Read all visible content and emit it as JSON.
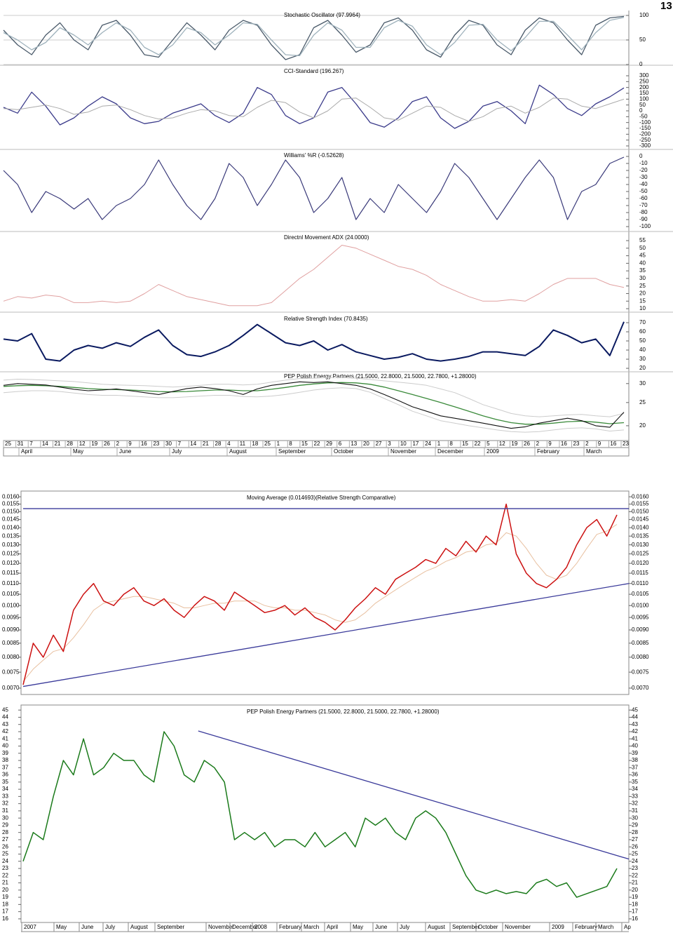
{
  "page_number": "13",
  "chart_data": [
    {
      "type": "line",
      "title": "Stochastic Oscillator (97.9964)",
      "ylim": [
        -1.5,
        110
      ],
      "yticks": [
        100,
        50,
        0
      ],
      "grid": true,
      "series": [
        {
          "color": "#4a5a6a",
          "line_width": 1.3,
          "values": [
            70,
            40,
            20,
            60,
            85,
            50,
            30,
            80,
            90,
            60,
            20,
            15,
            50,
            85,
            60,
            30,
            70,
            90,
            80,
            40,
            10,
            20,
            75,
            90,
            60,
            25,
            40,
            85,
            95,
            70,
            30,
            15,
            60,
            90,
            80,
            40,
            20,
            70,
            95,
            85,
            50,
            20,
            80,
            95,
            98
          ]
        },
        {
          "color": "#9fb2bc",
          "line_width": 1.3,
          "values": [
            65,
            50,
            30,
            45,
            75,
            60,
            40,
            65,
            85,
            70,
            35,
            20,
            40,
            75,
            65,
            40,
            60,
            85,
            82,
            50,
            20,
            18,
            60,
            85,
            70,
            35,
            35,
            75,
            90,
            78,
            40,
            20,
            45,
            80,
            82,
            50,
            28,
            55,
            88,
            88,
            60,
            30,
            65,
            90,
            96
          ]
        }
      ]
    },
    {
      "type": "line",
      "title": "CCI-Standard (196.267)",
      "ylim": [
        -330,
        378
      ],
      "yticks": [
        300,
        250,
        200,
        150,
        100,
        50,
        0,
        -50,
        -100,
        -150,
        -200,
        -250,
        -300
      ],
      "grid": false,
      "series": [
        {
          "color": "#3a3a8a",
          "line_width": 1.3,
          "values": [
            30,
            -20,
            160,
            40,
            -120,
            -60,
            40,
            120,
            60,
            -60,
            -110,
            -90,
            -20,
            20,
            60,
            -40,
            -100,
            -20,
            200,
            140,
            -40,
            -110,
            -60,
            160,
            200,
            60,
            -100,
            -140,
            -60,
            80,
            120,
            -60,
            -150,
            -90,
            40,
            80,
            0,
            -110,
            220,
            140,
            20,
            -40,
            60,
            120,
            196
          ]
        },
        {
          "color": "#aaaaaa",
          "line_width": 1,
          "values": [
            20,
            10,
            30,
            50,
            20,
            -30,
            -10,
            40,
            50,
            10,
            -40,
            -70,
            -60,
            -20,
            10,
            0,
            -40,
            -50,
            30,
            90,
            70,
            -10,
            -60,
            0,
            100,
            110,
            30,
            -60,
            -80,
            -20,
            40,
            30,
            -40,
            -90,
            -50,
            20,
            40,
            -20,
            30,
            110,
            100,
            40,
            20,
            60,
            100
          ]
        }
      ]
    },
    {
      "type": "line",
      "title": "Williams' %R (-0.52628)",
      "ylim": [
        -107,
        8
      ],
      "yticks": [
        0,
        -10,
        -20,
        -30,
        -40,
        -50,
        -60,
        -70,
        -80,
        -90,
        -100
      ],
      "grid": false,
      "series": [
        {
          "color": "#3a3a7a",
          "line_width": 1.2,
          "values": [
            -20,
            -40,
            -80,
            -50,
            -60,
            -75,
            -60,
            -90,
            -70,
            -60,
            -40,
            -5,
            -40,
            -70,
            -90,
            -60,
            -10,
            -30,
            -70,
            -40,
            -5,
            -30,
            -80,
            -60,
            -30,
            -90,
            -60,
            -80,
            -40,
            -60,
            -80,
            -50,
            -10,
            -30,
            -60,
            -90,
            -60,
            -30,
            -5,
            -30,
            -90,
            -50,
            -40,
            -10,
            -1
          ]
        }
      ]
    },
    {
      "type": "line",
      "title": "Directnl Movement ADX (24.0000)",
      "ylim": [
        7.7,
        60.1
      ],
      "yticks": [
        55,
        50,
        45,
        40,
        35,
        30,
        25,
        20,
        15,
        10
      ],
      "grid": false,
      "series": [
        {
          "color": "#e0a0a0",
          "line_width": 1,
          "values": [
            15,
            18,
            17,
            19,
            18,
            14,
            14,
            15,
            14,
            15,
            20,
            26,
            22,
            18,
            16,
            14,
            12,
            12,
            12,
            14,
            22,
            30,
            36,
            44,
            52,
            50,
            46,
            42,
            38,
            36,
            32,
            26,
            22,
            18,
            15,
            15,
            16,
            15,
            20,
            26,
            30,
            30,
            30,
            26,
            24
          ]
        }
      ]
    },
    {
      "type": "line",
      "title": "Relative Strength Index (70.8435)",
      "ylim": [
        16.2,
        79.2
      ],
      "yticks": [
        70,
        60,
        50,
        40,
        30,
        20
      ],
      "grid": false,
      "series": [
        {
          "color": "#0a1a60",
          "line_width": 2,
          "values": [
            52,
            50,
            58,
            30,
            28,
            40,
            45,
            42,
            48,
            44,
            54,
            62,
            45,
            35,
            33,
            38,
            45,
            56,
            68,
            58,
            48,
            45,
            50,
            40,
            46,
            38,
            34,
            30,
            32,
            36,
            30,
            28,
            30,
            33,
            38,
            38,
            36,
            34,
            44,
            62,
            56,
            48,
            52,
            34,
            71
          ]
        }
      ]
    },
    {
      "type": "line",
      "title": "PEP Polish Energy Partners (21.5000, 22.8000, 21.5000, 22.7800, +1.28000)",
      "log": true,
      "ylim": [
        17.7,
        33.6
      ],
      "yticks": [
        30,
        25,
        20
      ],
      "grid": false,
      "series": [
        {
          "color": "#cccccc",
          "line_width": 1,
          "values": [
            31,
            31.3,
            31.2,
            31,
            30.8,
            30.6,
            30.2,
            29.8,
            29.6,
            29.5,
            29.4,
            29.2,
            29,
            29.2,
            29.5,
            29.8,
            29.8,
            29.6,
            29.8,
            30.4,
            31,
            31.5,
            31.6,
            31.8,
            31.8,
            31.6,
            31.2,
            30.8,
            30.4,
            30,
            29.5,
            28.5,
            27.5,
            26,
            24.5,
            23.5,
            22.5,
            22,
            21.8,
            22,
            22.2,
            22.3,
            22,
            21.8,
            22.5
          ]
        },
        {
          "color": "#cccccc",
          "line_width": 1,
          "values": [
            27.5,
            27.8,
            28,
            28,
            27.8,
            27.4,
            27,
            26.8,
            26.8,
            26.6,
            26.4,
            26.2,
            26.2,
            26.4,
            26.6,
            26.8,
            26.8,
            26.5,
            26.4,
            26.6,
            27,
            27.6,
            28.2,
            28.6,
            28.8,
            28.6,
            27.6,
            26,
            24.5,
            23,
            22,
            21,
            20.5,
            20,
            19.6,
            19.2,
            18.9,
            18.8,
            18.9,
            19.2,
            19.5,
            19.6,
            19.4,
            19,
            19.2
          ]
        },
        {
          "color": "#3a8a3a",
          "line_width": 1.3,
          "values": [
            29.2,
            29.4,
            29.5,
            29.4,
            29.2,
            28.9,
            28.6,
            28.4,
            28.3,
            28.2,
            28,
            27.8,
            27.7,
            27.8,
            28,
            28.2,
            28.2,
            28,
            28,
            28.4,
            28.9,
            29.5,
            29.9,
            30.2,
            30.3,
            30.2,
            29.8,
            29,
            28,
            27,
            26,
            25,
            24,
            23,
            22,
            21.2,
            20.6,
            20.3,
            20.3,
            20.5,
            20.8,
            20.9,
            20.7,
            20.4,
            20.6
          ]
        },
        {
          "color": "#111111",
          "line_width": 1.1,
          "values": [
            29.5,
            30,
            29.8,
            29.6,
            29,
            28.4,
            28,
            28.2,
            28.5,
            28,
            27.5,
            27,
            27.8,
            28.6,
            29,
            28.6,
            28,
            27,
            28.5,
            29.5,
            30,
            30.5,
            30.3,
            30.5,
            30,
            29.5,
            28.5,
            27,
            25.5,
            24,
            23,
            22,
            21.5,
            21,
            20.5,
            20,
            19.5,
            19.8,
            20.5,
            21,
            21.5,
            21,
            20,
            19.7,
            22.78
          ]
        }
      ]
    },
    {
      "type": "line",
      "title": "Moving Average (0.014693)(Relative Strength Comparative)",
      "log": true,
      "ylim": [
        0.00681,
        0.0164
      ],
      "yticks": [
        {
          "value": 0.016,
          "label": "0.0160"
        },
        {
          "value": 0.0155,
          "label": "0.0155"
        },
        {
          "value": 0.015,
          "label": "0.0150"
        },
        {
          "value": 0.0145,
          "label": "0.0145"
        },
        {
          "value": 0.014,
          "label": "0.0140"
        },
        {
          "value": 0.0135,
          "label": "0.0135"
        },
        {
          "value": 0.013,
          "label": "0.0130"
        },
        {
          "value": 0.0125,
          "label": "0.0125"
        },
        {
          "value": 0.012,
          "label": "0.0120"
        },
        {
          "value": 0.0115,
          "label": "0.0115"
        },
        {
          "value": 0.011,
          "label": "0.0110"
        },
        {
          "value": 0.0105,
          "label": "0.0105"
        },
        {
          "value": 0.01,
          "label": "0.0100"
        },
        {
          "value": 0.0095,
          "label": "0.0095"
        },
        {
          "value": 0.009,
          "label": "0.0090"
        },
        {
          "value": 0.0085,
          "label": "0.0085"
        },
        {
          "value": 0.008,
          "label": "0.0080"
        },
        {
          "value": 0.0075,
          "label": "0.0075"
        },
        {
          "value": 0.007,
          "label": "0.0070"
        }
      ],
      "grid": false,
      "series": [
        {
          "color": "#e8c0a0",
          "line_width": 1,
          "values": [
            0.0072,
            0.0076,
            0.0079,
            0.0082,
            0.0083,
            0.0087,
            0.0092,
            0.0098,
            0.0101,
            0.0102,
            0.0103,
            0.0104,
            0.0104,
            0.0103,
            0.0102,
            0.0101,
            0.0099,
            0.0099,
            0.01,
            0.0101,
            0.0101,
            0.0102,
            0.0102,
            0.0102,
            0.01,
            0.0099,
            0.0099,
            0.0098,
            0.0098,
            0.0097,
            0.0096,
            0.0094,
            0.0093,
            0.0094,
            0.0097,
            0.0101,
            0.0104,
            0.0107,
            0.011,
            0.0113,
            0.0116,
            0.0118,
            0.0121,
            0.0123,
            0.0126,
            0.0127,
            0.013,
            0.0131,
            0.0137,
            0.0135,
            0.0128,
            0.012,
            0.0114,
            0.0112,
            0.0114,
            0.012,
            0.0128,
            0.0136,
            0.0138,
            0.0142
          ]
        },
        {
          "color": "#cc1111",
          "line_width": 1.5,
          "values": [
            0.0071,
            0.0085,
            0.008,
            0.0088,
            0.0082,
            0.0098,
            0.0105,
            0.011,
            0.0102,
            0.01,
            0.0105,
            0.0108,
            0.0102,
            0.01,
            0.0103,
            0.0098,
            0.0095,
            0.01,
            0.0104,
            0.0102,
            0.0098,
            0.0106,
            0.0103,
            0.01,
            0.0097,
            0.0098,
            0.01,
            0.0096,
            0.0099,
            0.0095,
            0.0093,
            0.009,
            0.0094,
            0.0099,
            0.0103,
            0.0108,
            0.0105,
            0.0112,
            0.0115,
            0.0118,
            0.0122,
            0.012,
            0.0128,
            0.0124,
            0.0132,
            0.0126,
            0.0135,
            0.013,
            0.0155,
            0.0125,
            0.0115,
            0.011,
            0.0108,
            0.0112,
            0.0118,
            0.013,
            0.014,
            0.0145,
            0.0135,
            0.0148
          ]
        }
      ],
      "trendlines": [
        {
          "color": "#3a3a9a",
          "x": [
            0,
            60.2
          ],
          "values": [
            0.0152,
            0.0152
          ]
        },
        {
          "color": "#3a3a9a",
          "x": [
            0,
            60.2
          ],
          "values": [
            0.00705,
            0.011
          ]
        }
      ]
    },
    {
      "type": "line",
      "title": "PEP Polish Energy Partners (21.5000, 22.8000, 21.5000, 22.7800, +1.28000)",
      "ylim": [
        15.5,
        45.7
      ],
      "yticks": [
        45,
        44,
        43,
        42,
        41,
        40,
        39,
        38,
        37,
        36,
        35,
        34,
        33,
        32,
        31,
        30,
        29,
        28,
        27,
        26,
        25,
        24,
        23,
        22,
        21,
        20,
        19,
        18,
        17,
        16
      ],
      "grid": false,
      "series": [
        {
          "color": "#1a7a1a",
          "line_width": 1.5,
          "values": [
            24,
            28,
            27,
            33,
            38,
            36,
            41,
            36,
            37,
            39,
            38,
            38,
            36,
            35,
            42,
            40,
            36,
            35,
            38,
            37,
            35,
            27,
            28,
            27,
            28,
            26,
            27,
            27,
            26,
            28,
            26,
            27,
            28,
            26,
            30,
            29,
            30,
            28,
            27,
            30,
            31,
            30,
            28,
            25,
            22,
            20,
            19.5,
            20,
            19.5,
            19.8,
            19.5,
            21,
            21.5,
            20.5,
            21,
            19,
            19.5,
            20,
            20.5,
            23
          ]
        }
      ],
      "trendlines": [
        {
          "color": "#3a3a9a",
          "x": [
            17.4,
            60.2
          ],
          "values": [
            42.1,
            24.3
          ]
        }
      ]
    }
  ],
  "top_axis": {
    "days": [
      25,
      31,
      7,
      14,
      21,
      28,
      12,
      19,
      26,
      2,
      9,
      16,
      23,
      30,
      7,
      14,
      21,
      28,
      4,
      11,
      18,
      25,
      1,
      8,
      15,
      22,
      29,
      6,
      13,
      20,
      27,
      3,
      10,
      17,
      24,
      1,
      8,
      15,
      22,
      5,
      12,
      19,
      26,
      2,
      9,
      16,
      23,
      2,
      9,
      16,
      23
    ],
    "months": [
      "April",
      "May",
      "June",
      "July",
      "August",
      "September",
      "October",
      "November",
      "December",
      "2009",
      "February",
      "March"
    ]
  },
  "bottom_axis": {
    "months": [
      "2007",
      "May",
      "June",
      "July",
      "August",
      "September",
      "November",
      "December",
      "2008",
      "February",
      "March",
      "April",
      "May",
      "June",
      "July",
      "August",
      "September",
      "October",
      "November",
      "2009",
      "February",
      "March",
      "Ap"
    ]
  }
}
